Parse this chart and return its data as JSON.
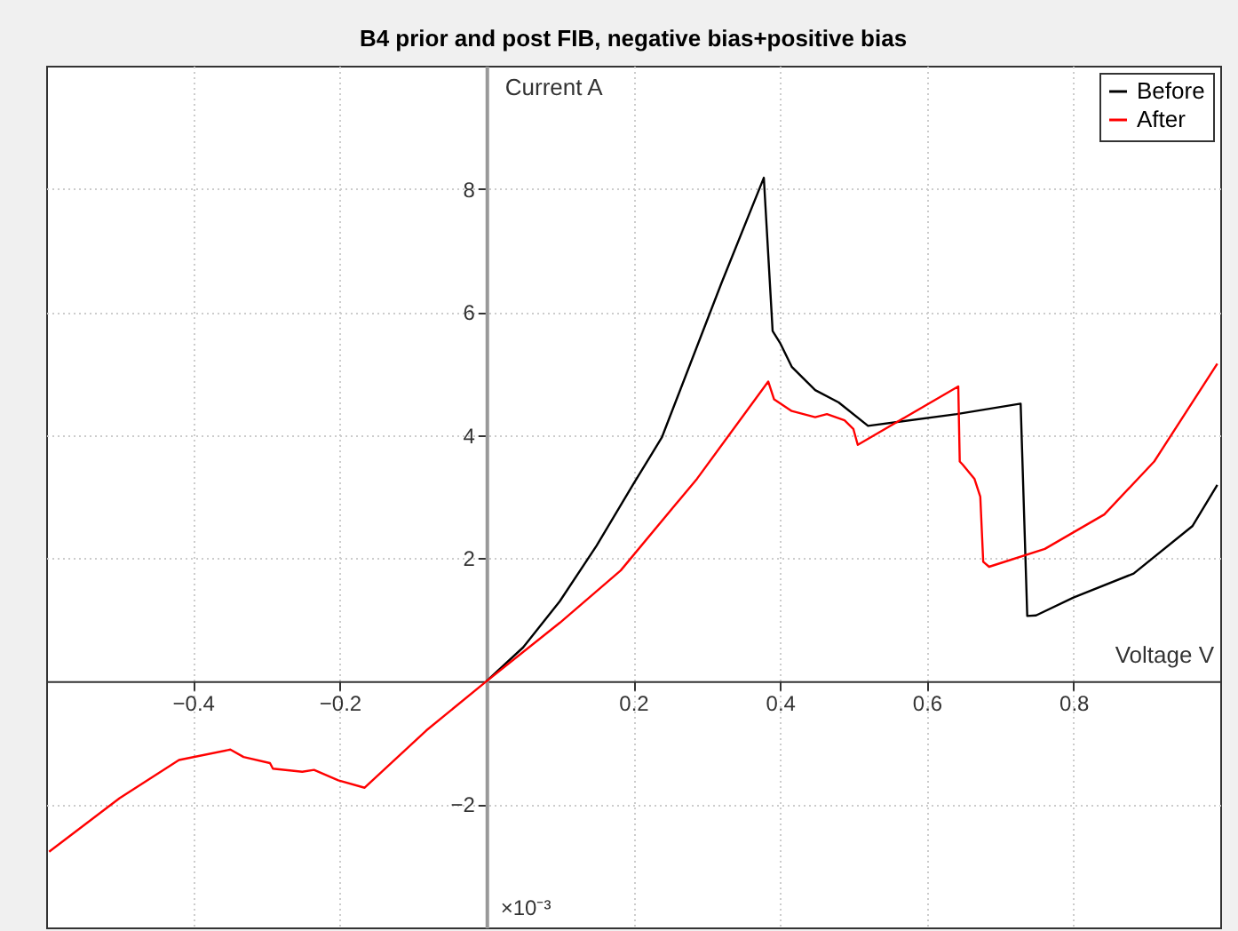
{
  "chart_data": {
    "type": "line",
    "title": "B4 prior and post FIB, negative bias+positive bias",
    "xlabel": "Voltage V",
    "ylabel": "Current A",
    "annotations": [
      "×10⁻³"
    ],
    "series": [
      {
        "name": "Before",
        "color": "#000000",
        "x": [
          0,
          0.05,
          0.1,
          0.15,
          0.2,
          0.239,
          0.32,
          0.378,
          0.39,
          0.4,
          0.416,
          0.448,
          0.48,
          0.52,
          0.641,
          0.728,
          0.737,
          0.749,
          0.8,
          0.882,
          0.962,
          0.996
        ],
        "values": [
          0,
          0.55,
          1.3,
          2.2,
          3.2,
          3.96,
          6.46,
          8.18,
          5.69,
          5.5,
          5.11,
          4.73,
          4.53,
          4.15,
          4.34,
          4.51,
          1.06,
          1.07,
          1.36,
          1.75,
          2.52,
          3.19
        ]
      },
      {
        "name": "After",
        "color": "#ff0000",
        "x": [
          -0.596,
          -0.5,
          -0.419,
          -0.349,
          -0.331,
          -0.295,
          -0.291,
          -0.251,
          -0.235,
          -0.202,
          -0.166,
          -0.082,
          0,
          0.1,
          0.183,
          0.287,
          0.384,
          0.392,
          0.416,
          0.448,
          0.464,
          0.488,
          0.5,
          0.506,
          0.643,
          0.645,
          0.649,
          0.665,
          0.673,
          0.677,
          0.685,
          0.761,
          0.842,
          0.91,
          0.996
        ],
        "values": [
          -2.77,
          -1.9,
          -1.28,
          -1.11,
          -1.23,
          -1.33,
          -1.42,
          -1.47,
          -1.44,
          -1.61,
          -1.73,
          -0.8,
          0,
          0.95,
          1.8,
          3.29,
          4.87,
          4.58,
          4.39,
          4.29,
          4.34,
          4.24,
          4.1,
          3.84,
          4.79,
          3.57,
          3.52,
          3.29,
          3.0,
          1.94,
          1.86,
          2.15,
          2.71,
          3.57,
          5.16
        ]
      }
    ],
    "xlim": [
      -0.6,
      1.0
    ],
    "ylim": [
      -4,
      10
    ],
    "xticks": [
      -0.4,
      -0.2,
      0.2,
      0.4,
      0.6,
      0.8
    ],
    "yticks": [
      -2,
      2,
      4,
      6,
      8
    ],
    "grid": true,
    "legend": "top right",
    "line_style": "solid",
    "marker": "none"
  }
}
